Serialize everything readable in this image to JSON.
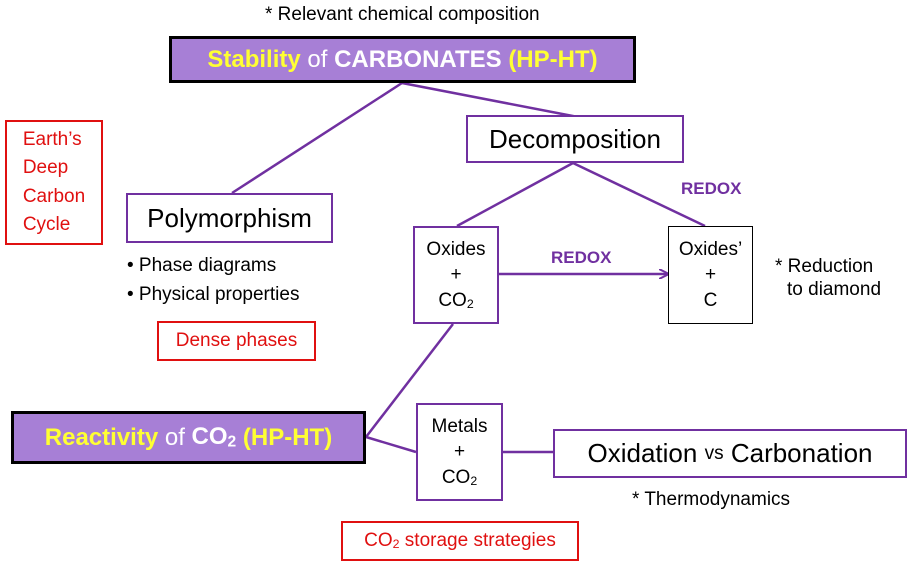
{
  "top_note": "* Relevant chemical composition",
  "stability_title": {
    "word1": "Stability",
    "word2": "of",
    "word3": "CARBONATES",
    "word4": "(HP-HT)"
  },
  "decomposition": "Decomposition",
  "redox_upper": "REDOX",
  "redox_middle": "REDOX",
  "earth_cycle": [
    "Earth’s",
    "Deep",
    "Carbon",
    "Cycle"
  ],
  "polymorphism": "Polymorphism",
  "bullets": [
    "• Phase diagrams",
    "• Physical properties"
  ],
  "dense_phases": "Dense phases",
  "oxides_box": {
    "line1": "Oxides",
    "line2": "+",
    "line3_main": "CO",
    "line3_sub": "2"
  },
  "oxides2_box": {
    "line1": "Oxides’",
    "line2": "+",
    "line3": "C"
  },
  "reduction_note": [
    "* Reduction",
    "to diamond"
  ],
  "reactivity_title": {
    "word1": "Reactivity",
    "word2": "of",
    "word3_main": "CO",
    "word3_sub": "2",
    "word4": "(HP-HT)"
  },
  "metals_box": {
    "line1": "Metals",
    "line2": "+",
    "line3_main": "CO",
    "line3_sub": "2"
  },
  "oxidation_box": {
    "part1": "Oxidation",
    "part2": "vs",
    "part3": "Carbonation"
  },
  "thermo_note": "* Thermodynamics",
  "co2_storage": {
    "main": "CO",
    "sub": "2",
    "rest": " storage strategies"
  },
  "colors": {
    "purple_line": "#7030a0",
    "title_fill": "#a77fd6",
    "yellow": "#ffff33",
    "red": "#e01010"
  }
}
